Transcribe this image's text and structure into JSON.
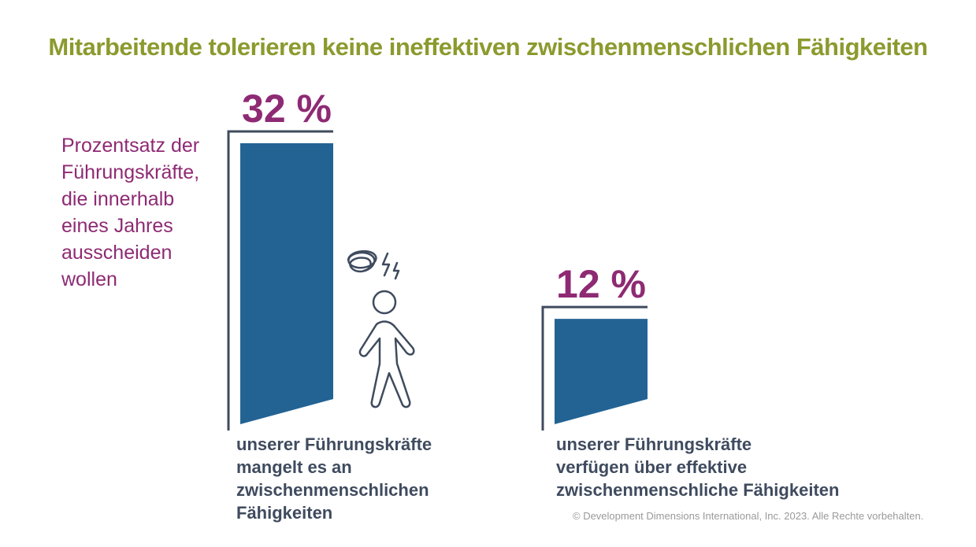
{
  "title": "Mitarbeitende tolerieren keine ineffektiven zwischenmenschlichen Fähigkeiten",
  "side_label": [
    "Prozentsatz der",
    "Führungskräfte,",
    "die innerhalb",
    "eines Jahres",
    "ausscheiden",
    "wollen"
  ],
  "bars": [
    {
      "label": "32 %",
      "caption": [
        "unserer Führungskräfte",
        "mangelt es an",
        "zwischenmenschlichen",
        "Fähigkeiten"
      ]
    },
    {
      "label": "12 %",
      "caption": [
        "unserer Führungskräfte",
        "verfügen über effektive",
        "zwischenmenschliche Fähigkeiten"
      ]
    }
  ],
  "copyright": "© Development Dimensions International, Inc. 2023. Alle Rechte vorbehalten.",
  "colors": {
    "bar": "#236394",
    "frame": "#3f4b5e",
    "percent": "#8e2a73",
    "title": "#8c9a2e"
  },
  "icons": [
    "confused-walking-person-icon"
  ],
  "chart_data": {
    "type": "bar",
    "categories": [
      "unserer Führungskräfte mangelt es an zwischenmenschlichen Fähigkeiten",
      "unserer Führungskräfte verfügen über effektive zwischenmenschliche Fähigkeiten"
    ],
    "values": [
      32,
      12
    ],
    "title": "Mitarbeitende tolerieren keine ineffektiven zwischenmenschlichen Fähigkeiten",
    "ylabel": "Prozentsatz der Führungskräfte, die innerhalb eines Jahres ausscheiden wollen",
    "data_labels": [
      "32 %",
      "12 %"
    ],
    "ylim": [
      0,
      32
    ]
  }
}
